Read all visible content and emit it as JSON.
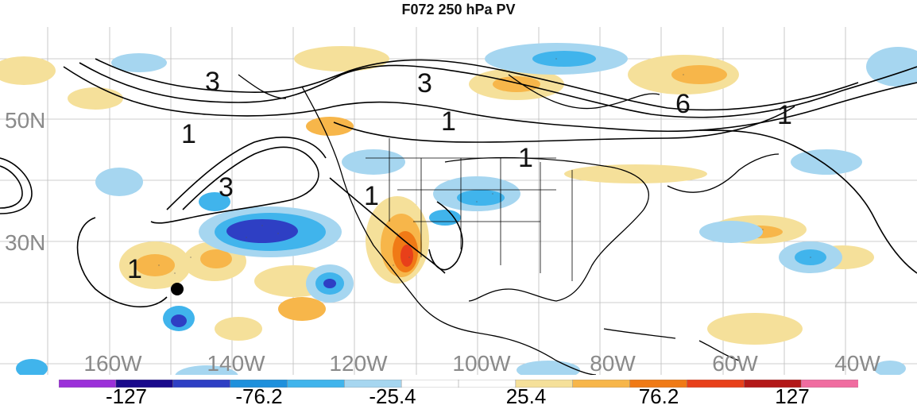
{
  "title": "F072 250 hPa PV",
  "lat_labels": [
    "50N",
    "30N"
  ],
  "lon_labels": [
    "160W",
    "140W",
    "120W",
    "100W",
    "80W",
    "60W",
    "40W"
  ],
  "contour_labels": [
    "3",
    "3",
    "1",
    "1",
    "3",
    "1",
    "1",
    "1",
    "6",
    "1"
  ],
  "colorbar": {
    "colors": [
      "#9b30d9",
      "#1a0a8c",
      "#2e3fc4",
      "#1e90dc",
      "#40b4ec",
      "#a6d6f0",
      "#ffffff",
      "#ffffff",
      "#f5e09a",
      "#f7b64a",
      "#f07a16",
      "#e8401a",
      "#b31818",
      "#f06ca0"
    ],
    "tick_labels": [
      "-127",
      "-76.2",
      "-25.4",
      "25.4",
      "76.2",
      "127"
    ]
  },
  "marker": "black-dot"
}
